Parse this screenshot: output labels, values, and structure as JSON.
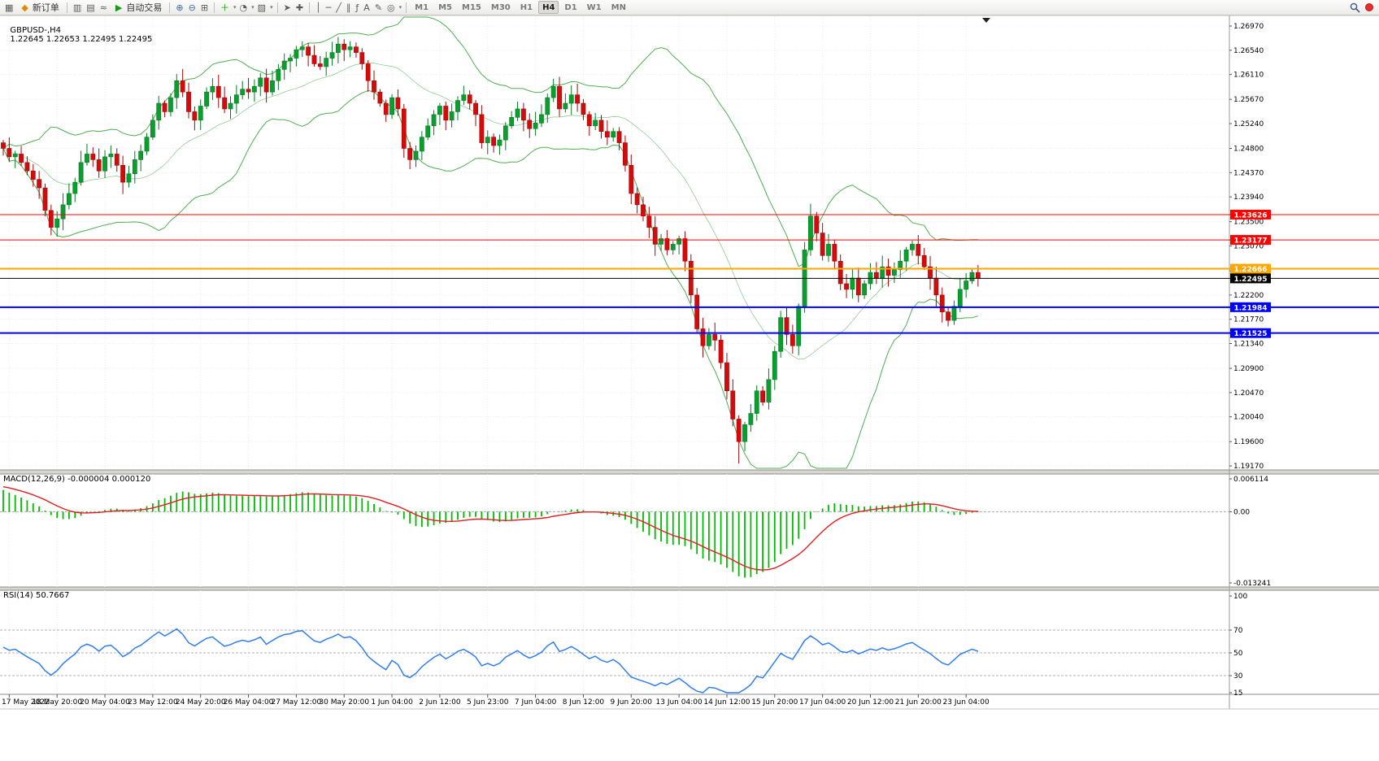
{
  "toolbar": {
    "new_order_label": "新订单",
    "auto_trading_label": "自动交易",
    "timeframes": [
      "M1",
      "M5",
      "M15",
      "M30",
      "H1",
      "H4",
      "D1",
      "W1",
      "MN"
    ],
    "active_timeframe": "H4",
    "icons": {
      "chart_window": "▦",
      "new_order": "◆",
      "bar_chart": "▥",
      "candle_chart": "▤",
      "line_chart": "≈",
      "auto_play": "▶",
      "zoom_in": "⊕",
      "zoom_out": "⊖",
      "tile_windows": "⊞",
      "cursor": "➤",
      "crosshair": "✚",
      "vertical_line": "│",
      "horizontal_line": "─",
      "trendline": "╱",
      "channel": "∥",
      "fibonacci": "ƒ",
      "text_tool": "A",
      "label_tool": "✎",
      "shapes": "◎",
      "indicators_add": "＋",
      "periods": "◔",
      "templates": "▨",
      "caret": "▾"
    }
  },
  "chart": {
    "symbol_label": "GBPUSD-,H4",
    "ohlc_label": "1.22645 1.22653 1.22495 1.22495",
    "macd_label": "MACD(12,26,9) -0.000004 0.000120",
    "rsi_label": "RSI(14) 50.7667",
    "price_axis": [
      "1.26970",
      "1.26540",
      "1.26110",
      "1.25670",
      "1.25240",
      "1.24800",
      "1.24370",
      "1.23940",
      "1.23500",
      "1.23070",
      "1.22630",
      "1.22200",
      "1.21770",
      "1.21340",
      "1.20900",
      "1.20470",
      "1.20040",
      "1.19600",
      "1.19170"
    ],
    "levels": [
      {
        "price": 1.23626,
        "label": "1.23626",
        "color": "#ff0000",
        "width": 1
      },
      {
        "price": 1.23177,
        "label": "1.23177",
        "color": "#ff0000",
        "width": 1
      },
      {
        "price": 1.22666,
        "label": "1.22666",
        "color": "#ffa500",
        "width": 2
      },
      {
        "price": 1.22495,
        "label": "1.22495",
        "color": "#000000",
        "width": 1
      },
      {
        "price": 1.21984,
        "label": "1.21984",
        "color": "#0000ff",
        "width": 2
      },
      {
        "price": 1.21525,
        "label": "1.21525",
        "color": "#0000ff",
        "width": 2
      }
    ]
  },
  "chart_data": {
    "type": "candlestick",
    "symbol": "GBPUSD",
    "period": "H4",
    "current_bar": {
      "open": 1.22645,
      "high": 1.22653,
      "low": 1.22495,
      "close": 1.22495
    },
    "price_range": [
      1.1917,
      1.2697
    ],
    "open_first": 1.249,
    "closes": [
      1.248,
      1.2465,
      1.247,
      1.2455,
      1.244,
      1.2425,
      1.241,
      1.237,
      1.234,
      1.2355,
      1.238,
      1.24,
      1.242,
      1.2455,
      1.247,
      1.246,
      1.244,
      1.2465,
      1.247,
      1.245,
      1.242,
      1.2435,
      1.246,
      1.2475,
      1.25,
      1.253,
      1.256,
      1.2545,
      1.257,
      1.26,
      1.258,
      1.2545,
      1.253,
      1.2555,
      1.258,
      1.259,
      1.257,
      1.255,
      1.256,
      1.2575,
      1.2585,
      1.258,
      1.259,
      1.2605,
      1.258,
      1.26,
      1.262,
      1.2635,
      1.264,
      1.2655,
      1.266,
      1.2645,
      1.263,
      1.2625,
      1.264,
      1.265,
      1.2665,
      1.2655,
      1.266,
      1.265,
      1.263,
      1.26,
      1.258,
      1.256,
      1.254,
      1.257,
      1.255,
      1.248,
      1.246,
      1.2475,
      1.25,
      1.252,
      1.254,
      1.2555,
      1.253,
      1.2545,
      1.2565,
      1.2575,
      1.256,
      1.254,
      1.249,
      1.25,
      1.2485,
      1.2495,
      1.252,
      1.2535,
      1.255,
      1.253,
      1.2515,
      1.2525,
      1.254,
      1.257,
      1.259,
      1.255,
      1.256,
      1.2575,
      1.256,
      1.254,
      1.252,
      1.253,
      1.251,
      1.25,
      1.251,
      1.249,
      1.245,
      1.24,
      1.238,
      1.236,
      1.234,
      1.231,
      1.232,
      1.23,
      1.231,
      1.232,
      1.228,
      1.222,
      1.216,
      1.213,
      1.215,
      1.214,
      1.21,
      1.205,
      1.2,
      1.196,
      1.199,
      1.201,
      1.205,
      1.203,
      1.207,
      1.212,
      1.218,
      1.215,
      1.213,
      1.22,
      1.23,
      1.236,
      1.233,
      1.229,
      1.231,
      1.228,
      1.224,
      1.223,
      1.225,
      1.222,
      1.224,
      1.226,
      1.225,
      1.227,
      1.2255,
      1.2265,
      1.228,
      1.23,
      1.231,
      1.229,
      1.227,
      1.225,
      1.222,
      1.219,
      1.2175,
      1.22,
      1.223,
      1.2245,
      1.226,
      1.22495
    ],
    "wick_overrides": {
      "123": {
        "low": 1.1921
      },
      "135": {
        "high": 1.2382
      }
    },
    "x_labels": [
      "17 May 2022",
      "18 May 20:00",
      "20 May 04:00",
      "23 May 12:00",
      "24 May 20:00",
      "26 May 04:00",
      "27 May 12:00",
      "30 May 20:00",
      "1 Jun 04:00",
      "2 Jun 12:00",
      "5 Jun 23:00",
      "7 Jun 04:00",
      "8 Jun 12:00",
      "9 Jun 20:00",
      "13 Jun 04:00",
      "14 Jun 12:00",
      "15 Jun 20:00",
      "17 Jun 04:00",
      "20 Jun 12:00",
      "21 Jun 20:00",
      "23 Jun 04:00"
    ],
    "indicators": [
      {
        "name": "Bollinger Bands",
        "period": 20,
        "deviation": 2
      },
      {
        "name": "MACD",
        "fast": 12,
        "slow": 26,
        "signal": 9,
        "current_values": [
          -4e-06,
          0.00012
        ],
        "axis_range": [
          -0.013241,
          0.006114
        ]
      },
      {
        "name": "RSI",
        "period": 14,
        "current_value": 50.7667,
        "levels": [
          70,
          50,
          30
        ]
      }
    ],
    "macd_axis": [
      {
        "v": 0.006114,
        "t": "0.006114"
      },
      {
        "v": 0,
        "t": "0.00"
      },
      {
        "v": -0.013241,
        "t": "-0.013241"
      }
    ],
    "rsi_axis": [
      {
        "v": 100,
        "t": "100",
        "dashed": false
      },
      {
        "v": 70,
        "t": "70",
        "dashed": true
      },
      {
        "v": 50,
        "t": "50",
        "dashed": true
      },
      {
        "v": 30,
        "t": "30",
        "dashed": true
      },
      {
        "v": 15,
        "t": "15",
        "dashed": false
      }
    ],
    "horizontal_levels": [
      1.23626,
      1.23177,
      1.22666,
      1.21984,
      1.21525
    ],
    "colors": {
      "up": "#0a9e2e",
      "up_border": "#067a22",
      "down": "#d40b0b",
      "down_border": "#9e0808",
      "bands": "#4caf50",
      "macd": "#00bb00",
      "signal": "#e02020",
      "rsi": "#2f7ef0",
      "grid": "#ececec",
      "axis": "#9a9a9a"
    }
  }
}
